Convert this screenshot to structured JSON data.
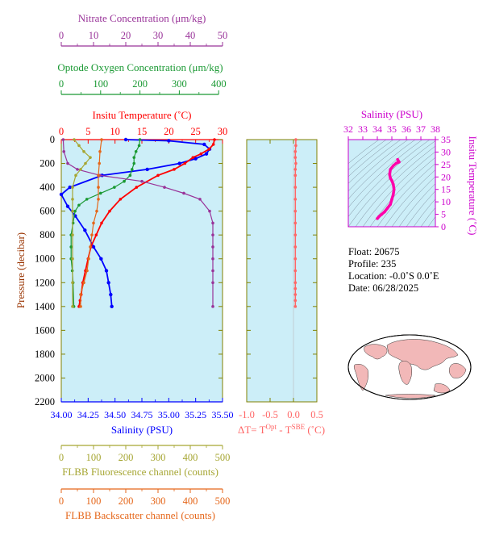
{
  "colors": {
    "nitrate": "#993399",
    "oxygen": "#1a9933",
    "temperature": "#ff0000",
    "salinity": "#0000ff",
    "fluorescence": "#a6a633",
    "backscatter": "#e56619",
    "delta_t": "#ff6666",
    "ts_magenta": "#ff00aa",
    "axis_salinity_top": "#cc00cc",
    "plot_bg": "#cceef8",
    "frame": "#808000"
  },
  "axes": {
    "nitrate": {
      "label": "Nitrate Concentration (μm/kg)",
      "ticks": [
        "0",
        "10",
        "20",
        "30",
        "40",
        "50"
      ]
    },
    "oxygen": {
      "label": "Optode Oxygen Concentration (μm/kg)",
      "ticks": [
        "0",
        "100",
        "200",
        "300",
        "400"
      ]
    },
    "temperature": {
      "label": "Insitu Temperature (˚C)",
      "ticks": [
        "0",
        "5",
        "10",
        "15",
        "20",
        "25",
        "30"
      ]
    },
    "pressure": {
      "label": "Pressure (decibar)",
      "ticks": [
        "0",
        "200",
        "400",
        "600",
        "800",
        "1000",
        "1200",
        "1400",
        "1600",
        "1800",
        "2000",
        "2200"
      ]
    },
    "salinity": {
      "label": "Salinity (PSU)",
      "ticks": [
        "34.00",
        "34.25",
        "34.50",
        "34.75",
        "35.00",
        "35.25",
        "35.50"
      ]
    },
    "delta_t": {
      "label_main": "ΔT= T",
      "label_sup1": "Opt",
      "label_mid": " - T",
      "label_sup2": "SBE",
      "label_end": " (˚C)",
      "ticks": [
        "-1.0",
        "-0.5",
        "0.0",
        "0.5"
      ]
    },
    "fluorescence": {
      "label": "FLBB Fluorescence channel (counts)",
      "ticks": [
        "0",
        "100",
        "200",
        "300",
        "400",
        "500"
      ]
    },
    "backscatter": {
      "label": "FLBB Backscatter channel (counts)",
      "ticks": [
        "0",
        "100",
        "200",
        "300",
        "400",
        "500"
      ]
    },
    "ts_salinity": {
      "label": "Salinity (PSU)",
      "ticks": [
        "32",
        "33",
        "34",
        "35",
        "36",
        "37",
        "38"
      ]
    },
    "ts_temperature": {
      "label": "Insitu Temperature (˚C)",
      "ticks": [
        "0",
        "5",
        "10",
        "15",
        "20",
        "25",
        "30",
        "35"
      ]
    }
  },
  "info": {
    "float": "Float:  20675",
    "profile": "Profile:  235",
    "location": "Location:  -0.0˚S   0.0˚E",
    "date": "Date:  06/28/2025"
  },
  "chart_data": [
    {
      "type": "line",
      "series": [
        {
          "name": "Salinity (PSU)",
          "x": [
            34.6,
            35.0,
            35.33,
            35.38,
            35.35,
            35.25,
            35.1,
            34.8,
            34.38,
            34.08,
            34.0,
            34.06,
            34.13,
            34.22,
            34.3,
            34.37,
            34.42,
            34.44,
            34.46,
            34.47
          ],
          "y": [
            0,
            10,
            40,
            80,
            120,
            160,
            200,
            250,
            300,
            400,
            460,
            560,
            640,
            760,
            900,
            1000,
            1100,
            1200,
            1300,
            1400
          ]
        },
        {
          "name": "Insitu Temperature (˚C)",
          "x": [
            28.5,
            28.3,
            27.5,
            26.0,
            24.5,
            23.0,
            21.0,
            18.0,
            14.0,
            11.0,
            9.0,
            7.5,
            6.5,
            5.5,
            5.0,
            4.5,
            4.0,
            3.7,
            3.5,
            3.3
          ],
          "y": [
            0,
            40,
            80,
            120,
            150,
            200,
            250,
            300,
            400,
            500,
            600,
            700,
            800,
            900,
            1000,
            1100,
            1200,
            1300,
            1350,
            1400
          ]
        },
        {
          "name": "Optode Oxygen Concentration (μm/kg)",
          "x": [
            200,
            198,
            190,
            185,
            185,
            180,
            175,
            160,
            135,
            100,
            65,
            45,
            35,
            30,
            25,
            25,
            25,
            28,
            30,
            32
          ],
          "y": [
            0,
            50,
            100,
            150,
            200,
            250,
            300,
            350,
            400,
            450,
            500,
            550,
            600,
            700,
            800,
            900,
            1000,
            1100,
            1200,
            1400
          ]
        },
        {
          "name": "Nitrate Concentration (μm/kg)",
          "x": [
            0.6,
            0.8,
            2,
            5,
            12,
            25,
            32,
            38,
            43,
            46,
            47,
            47,
            47,
            47,
            47,
            47,
            47
          ],
          "y": [
            0,
            100,
            200,
            250,
            300,
            350,
            400,
            450,
            500,
            600,
            700,
            800,
            900,
            1000,
            1100,
            1200,
            1400
          ]
        },
        {
          "name": "FLBB Fluorescence channel (counts)",
          "x": [
            40,
            55,
            70,
            90,
            75,
            60,
            45,
            35,
            35,
            35,
            35,
            35,
            35,
            35
          ],
          "y": [
            0,
            50,
            100,
            150,
            200,
            250,
            300,
            400,
            500,
            600,
            800,
            1000,
            1200,
            1400
          ]
        },
        {
          "name": "FLBB Backscatter channel (counts)",
          "x": [
            125,
            120,
            118,
            115,
            115,
            115,
            110,
            100,
            95,
            90,
            85,
            80,
            70,
            60,
            60
          ],
          "y": [
            0,
            100,
            200,
            300,
            400,
            500,
            600,
            700,
            800,
            900,
            1000,
            1100,
            1200,
            1300,
            1400
          ]
        }
      ],
      "ylim": [
        2200,
        0
      ]
    },
    {
      "type": "scatter",
      "series": [
        {
          "x": [
            0.05,
            0.05,
            0.04,
            0.04,
            0.05,
            0.04,
            0.04,
            0.04,
            0.04,
            0.04,
            0.04,
            0.04,
            0.04,
            0.04,
            0.04,
            0.04,
            0.04,
            0.04,
            0.04,
            0.04
          ],
          "y": [
            0,
            50,
            100,
            150,
            200,
            250,
            300,
            400,
            500,
            600,
            700,
            800,
            900,
            1000,
            1100,
            1200,
            1250,
            1300,
            1350,
            1400
          ]
        }
      ],
      "xlim": [
        -1.0,
        0.5
      ],
      "ylim": [
        2200,
        0
      ]
    },
    {
      "type": "line",
      "series": [
        {
          "x": [
            34.0,
            34.1,
            34.3,
            34.5,
            34.7,
            34.9,
            35.0,
            35.1,
            35.15,
            35.1,
            35.0,
            34.9,
            34.85,
            34.9,
            35.1,
            35.3,
            35.5,
            35.4
          ],
          "y": [
            3.3,
            4.0,
            5.0,
            6.0,
            7.5,
            9.0,
            11.0,
            13.0,
            15.0,
            17.0,
            18.5,
            19.5,
            21.0,
            23.0,
            24.5,
            25.5,
            26.0,
            27.0
          ]
        }
      ],
      "xlim": [
        32,
        38
      ],
      "ylim": [
        0,
        35
      ]
    }
  ]
}
